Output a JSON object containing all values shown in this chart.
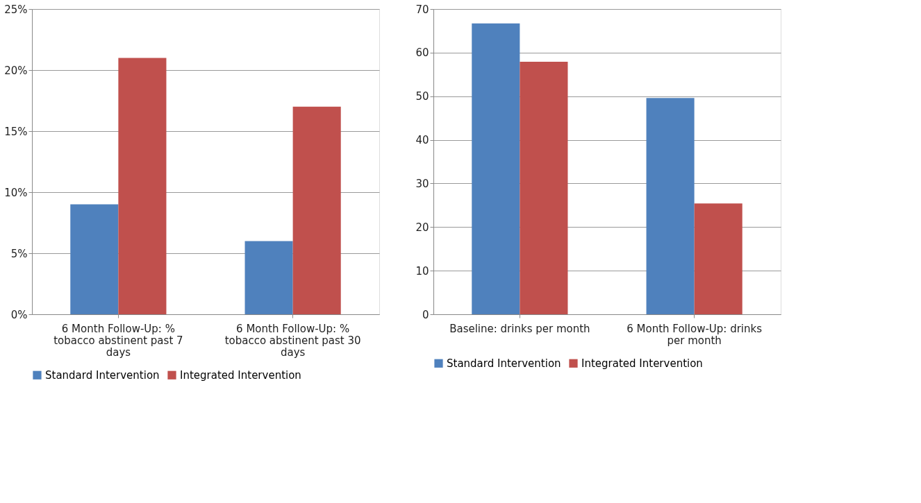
{
  "chart_data": [
    {
      "type": "bar",
      "categories": [
        "6 Month Follow-Up: % tobacco abstinent past 7 days",
        "6 Month Follow-Up: % tobacco abstinent past 30 days"
      ],
      "series": [
        {
          "name": "Standard Intervention",
          "color": "#4f81bd",
          "values": [
            9,
            6
          ]
        },
        {
          "name": "Integrated Intervention",
          "color": "#c0504d",
          "values": [
            21,
            17
          ]
        }
      ],
      "ylim": [
        0,
        25
      ],
      "yticks": [
        {
          "value": 0,
          "label": "0%"
        },
        {
          "value": 5,
          "label": "5%"
        },
        {
          "value": 10,
          "label": "10%"
        },
        {
          "value": 15,
          "label": "15%"
        },
        {
          "value": 20,
          "label": "20%"
        },
        {
          "value": 25,
          "label": "25%"
        }
      ],
      "grid": "y",
      "legend": "bottom"
    },
    {
      "type": "bar",
      "categories": [
        "Baseline: drinks per month",
        "6 Month Follow-Up: drinks per month"
      ],
      "series": [
        {
          "name": "Standard Intervention",
          "color": "#4f81bd",
          "values": [
            66.7,
            49.6
          ]
        },
        {
          "name": "Integrated Intervention",
          "color": "#c0504d",
          "values": [
            57.9,
            25.4
          ]
        }
      ],
      "ylim": [
        0,
        70
      ],
      "yticks": [
        0,
        10,
        20,
        30,
        40,
        50,
        60,
        70
      ],
      "grid": "y",
      "legend": "bottom"
    }
  ]
}
